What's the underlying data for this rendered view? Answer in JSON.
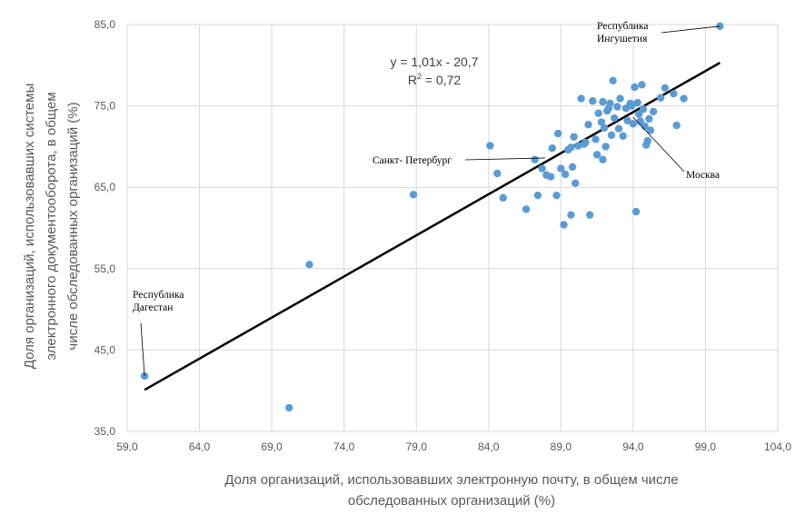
{
  "chart_data": {
    "type": "scatter",
    "xlabel_lines": [
      "Доля организаций, использовавших электронную почту, в общем числе",
      "обследованных организаций (%)"
    ],
    "ylabel_lines": [
      "Доля организаций, использовавших системы",
      "электронного документооборота, в общем",
      "числе обследованных организаций (%)"
    ],
    "xlim": [
      59.0,
      104.0
    ],
    "ylim": [
      35.0,
      85.0
    ],
    "x_ticks": [
      "59,0",
      "64,0",
      "69,0",
      "74,0",
      "79,0",
      "84,0",
      "89,0",
      "94,0",
      "99,0",
      "104,0"
    ],
    "y_ticks": [
      "35,0",
      "45,0",
      "55,0",
      "65,0",
      "75,0",
      "85,0"
    ],
    "grid": true,
    "point_color": "#5b9bd5",
    "trendline": {
      "slope": 1.01,
      "intercept": -20.7,
      "equation": "y = 1,01x - 20,7",
      "r2_label": "R",
      "r2_sup": "2",
      "r2_value": " = 0,72",
      "color": "#000000"
    },
    "points": [
      [
        100.0,
        84.8
      ],
      [
        60.2,
        41.8
      ],
      [
        70.2,
        37.9
      ],
      [
        71.6,
        55.5
      ],
      [
        78.8,
        64.1
      ],
      [
        84.1,
        70.1
      ],
      [
        84.6,
        66.7
      ],
      [
        85.0,
        63.7
      ],
      [
        86.6,
        62.3
      ],
      [
        87.2,
        68.4
      ],
      [
        87.4,
        64.0
      ],
      [
        87.7,
        67.3
      ],
      [
        88.0,
        66.5
      ],
      [
        88.3,
        66.3
      ],
      [
        88.4,
        69.8
      ],
      [
        88.7,
        64.0
      ],
      [
        88.8,
        71.6
      ],
      [
        89.0,
        67.3
      ],
      [
        89.2,
        60.4
      ],
      [
        89.3,
        66.6
      ],
      [
        89.5,
        69.6
      ],
      [
        89.7,
        61.6
      ],
      [
        89.7,
        69.9
      ],
      [
        89.8,
        67.5
      ],
      [
        89.9,
        71.2
      ],
      [
        90.0,
        65.5
      ],
      [
        90.2,
        70.1
      ],
      [
        90.4,
        75.9
      ],
      [
        90.7,
        70.5
      ],
      [
        90.9,
        72.7
      ],
      [
        91.0,
        61.6
      ],
      [
        91.2,
        75.6
      ],
      [
        91.4,
        70.9
      ],
      [
        91.5,
        69.0
      ],
      [
        91.8,
        73.0
      ],
      [
        91.9,
        68.4
      ],
      [
        91.9,
        75.5
      ],
      [
        92.0,
        72.3
      ],
      [
        92.1,
        70.0
      ],
      [
        92.2,
        74.4
      ],
      [
        92.4,
        75.3
      ],
      [
        92.5,
        71.4
      ],
      [
        92.6,
        78.1
      ],
      [
        92.7,
        73.5
      ],
      [
        92.9,
        74.9
      ],
      [
        93.0,
        72.2
      ],
      [
        93.1,
        75.9
      ],
      [
        93.3,
        71.3
      ],
      [
        93.5,
        74.7
      ],
      [
        93.6,
        73.2
      ],
      [
        93.8,
        75.3
      ],
      [
        94.0,
        72.8
      ],
      [
        94.1,
        77.3
      ],
      [
        94.2,
        62.0
      ],
      [
        94.3,
        75.4
      ],
      [
        94.4,
        74.0
      ],
      [
        94.5,
        73.1
      ],
      [
        94.6,
        77.6
      ],
      [
        94.7,
        74.6
      ],
      [
        94.8,
        72.5
      ],
      [
        94.9,
        70.2
      ],
      [
        95.0,
        70.7
      ],
      [
        95.1,
        73.4
      ],
      [
        95.2,
        72.0
      ],
      [
        95.4,
        74.3
      ],
      [
        95.9,
        76.0
      ],
      [
        96.2,
        77.2
      ],
      [
        96.8,
        76.5
      ],
      [
        97.0,
        72.6
      ],
      [
        97.5,
        75.9
      ],
      [
        92.3,
        74.7
      ],
      [
        93.9,
        75.0
      ],
      [
        91.6,
        74.1
      ],
      [
        90.6,
        70.3
      ]
    ],
    "annotations": [
      {
        "lines": [
          "Республика",
          "Ингушетия"
        ],
        "point": [
          100.0,
          84.8
        ]
      },
      {
        "lines": [
          "Санкт- Петербург"
        ],
        "point": [
          87.9,
          68.6
        ]
      },
      {
        "lines": [
          "Москва"
        ],
        "point": [
          94.0,
          73.6
        ]
      },
      {
        "lines": [
          "Республика",
          "Дагестан"
        ],
        "point": [
          60.2,
          41.8
        ]
      }
    ]
  }
}
